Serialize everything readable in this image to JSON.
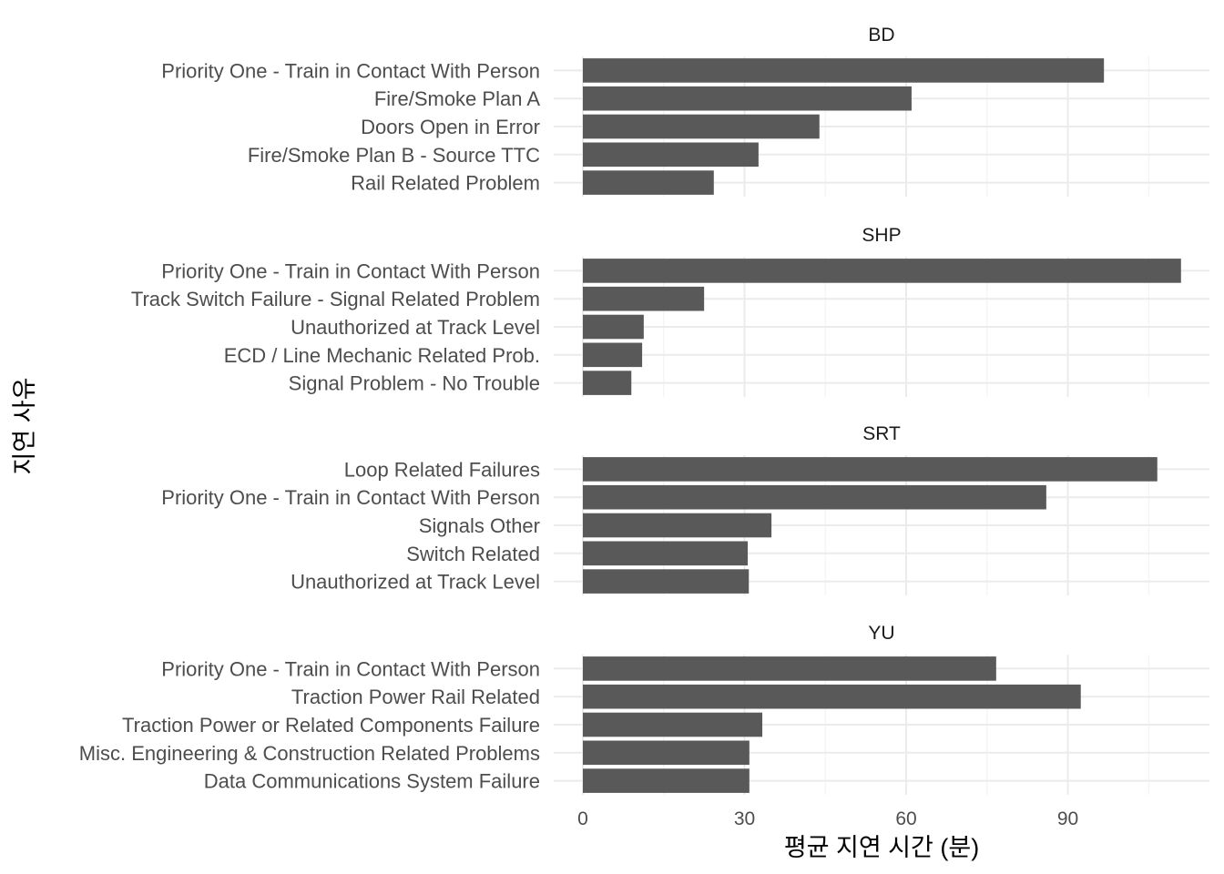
{
  "chart_data": {
    "type": "bar",
    "orientation": "horizontal",
    "xlabel": "평균 지연 시간 (분)",
    "ylabel": "지연 사유",
    "xlim": [
      0,
      116
    ],
    "xticks": [
      0,
      30,
      60,
      90
    ],
    "grid": true,
    "bar_color": "#595959",
    "facets": [
      {
        "title": "BD",
        "categories": [
          "Priority One - Train in Contact With Person",
          "Fire/Smoke Plan A",
          "Doors Open in Error",
          "Fire/Smoke Plan B - Source TTC",
          "Rail Related Problem"
        ],
        "values": [
          96.7,
          61.0,
          43.9,
          32.6,
          24.3
        ]
      },
      {
        "title": "SHP",
        "categories": [
          "Priority One - Train in Contact With Person",
          "Track Switch Failure - Signal Related Problem",
          "Unauthorized at Track Level",
          "ECD / Line Mechanic Related Prob.",
          "Signal Problem - No Trouble"
        ],
        "values": [
          111.0,
          22.5,
          11.3,
          11.0,
          9.0
        ]
      },
      {
        "title": "SRT",
        "categories": [
          "Loop Related Failures",
          "Priority One - Train in Contact With Person",
          "Signals Other",
          "Switch Related",
          "Unauthorized at Track Level"
        ],
        "values": [
          106.6,
          86.0,
          35.0,
          30.6,
          30.8
        ]
      },
      {
        "title": "YU",
        "categories": [
          "Priority One - Train in Contact With Person",
          "Traction Power Rail Related",
          "Traction Power or Related Components Failure",
          "Misc. Engineering & Construction Related Problems",
          "Data Communications System Failure"
        ],
        "values": [
          76.7,
          92.4,
          33.3,
          30.9,
          30.9
        ]
      }
    ]
  }
}
